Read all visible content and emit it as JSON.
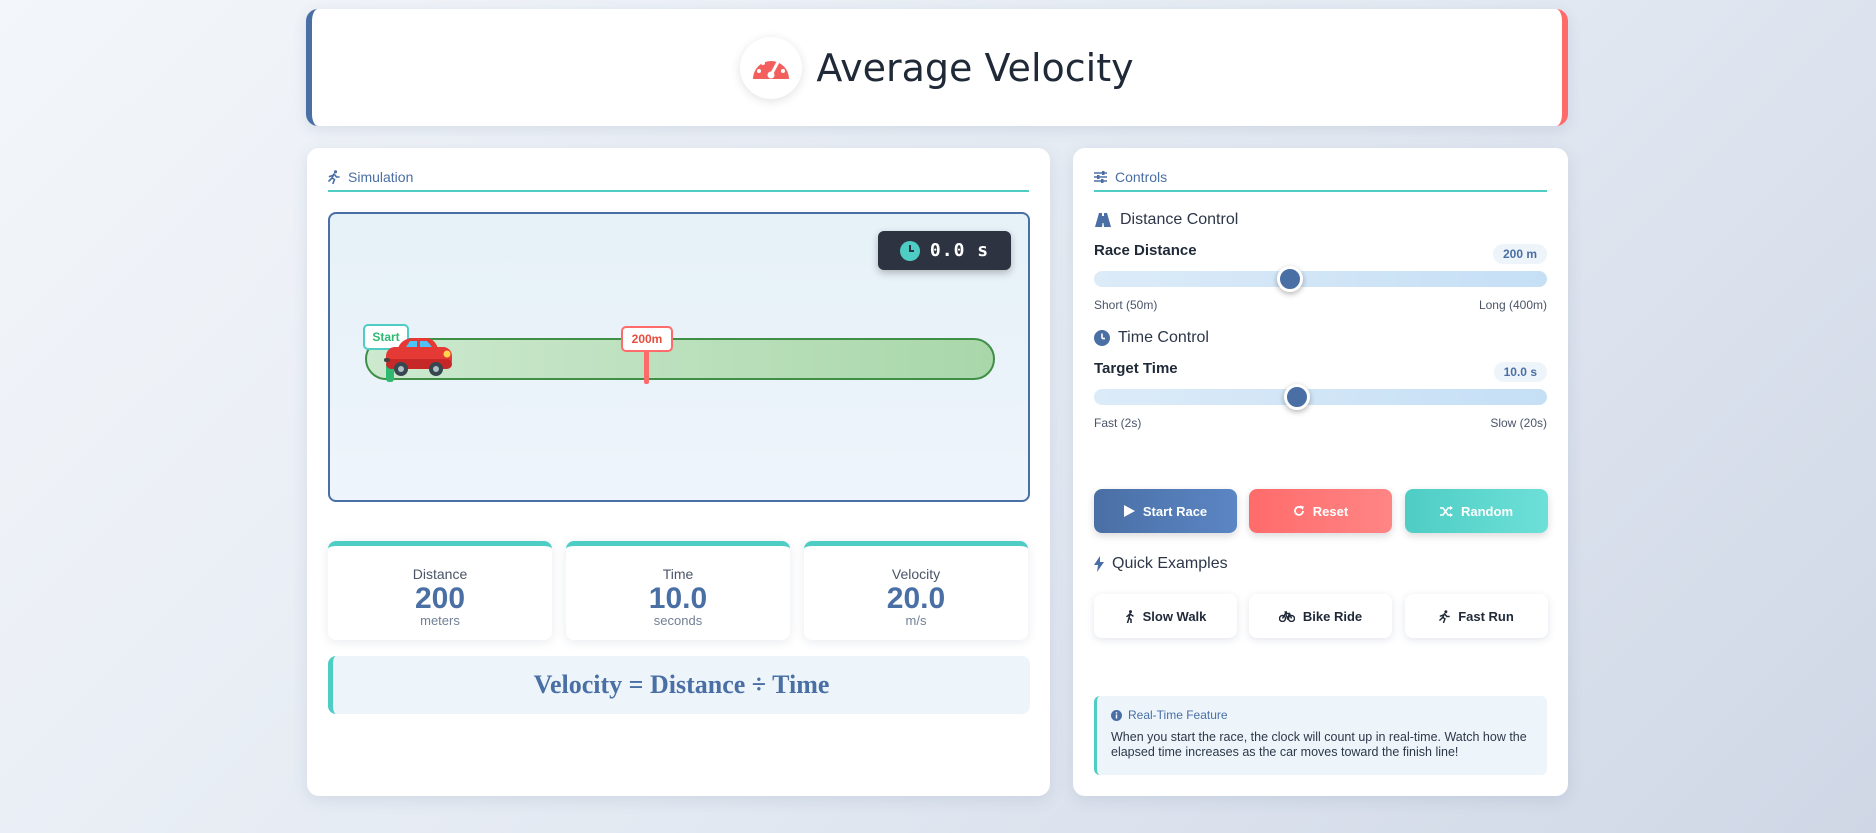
{
  "header": {
    "title": "Average Velocity",
    "icon": "speedometer-icon",
    "accent_left": "#4a6fa5",
    "accent_right": "#ff6b6b"
  },
  "simulation": {
    "title": "Simulation",
    "timer": "0.0 s",
    "start_label": "Start",
    "distance_marker": "200m",
    "car_progress": 0
  },
  "stats": [
    {
      "label": "Distance",
      "value": "200",
      "unit": "meters"
    },
    {
      "label": "Time",
      "value": "10.0",
      "unit": "seconds"
    },
    {
      "label": "Velocity",
      "value": "20.0",
      "unit": "m/s"
    }
  ],
  "formula": "Velocity = Distance ÷ Time",
  "controls": {
    "title": "Controls",
    "distance": {
      "section": "Distance Control",
      "label": "Race Distance",
      "value_text": "200 m",
      "value": 200,
      "min": 50,
      "max": 400,
      "hint_min": "Short (50m)",
      "hint_max": "Long (400m)"
    },
    "time": {
      "section": "Time Control",
      "label": "Target Time",
      "value_text": "10.0 s",
      "value": 10,
      "min": 2,
      "max": 20,
      "hint_min": "Fast (2s)",
      "hint_max": "Slow (20s)"
    },
    "buttons": {
      "start": "Start Race",
      "reset": "Reset",
      "random": "Random"
    },
    "examples_title": "Quick Examples",
    "examples": [
      "Slow Walk",
      "Bike Ride",
      "Fast Run"
    ],
    "info": {
      "title": "Real-Time Feature",
      "text": "When you start the race, the clock will count up in real-time. Watch how the elapsed time increases as the car moves toward the finish line!"
    }
  }
}
